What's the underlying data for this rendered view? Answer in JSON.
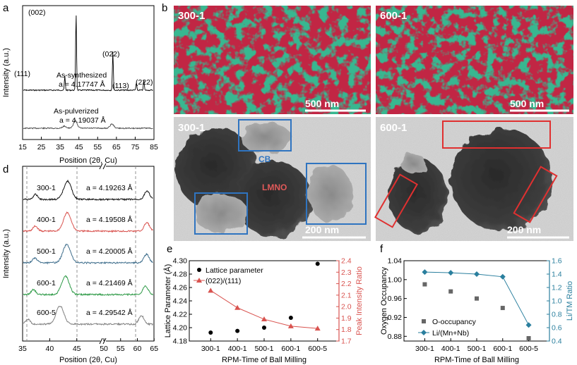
{
  "panels": {
    "a": {
      "label": "a",
      "ylabel": "Intensity (a.u.)",
      "xlabel": "Position (2θ, Cu)",
      "xticks": [
        15,
        25,
        35,
        45,
        55,
        65,
        75,
        85
      ],
      "peaks": [
        "(002)",
        "(111)",
        "(022)",
        "(113)",
        "(222)"
      ],
      "synth_label": "As-synthesized",
      "synth_param": "a = 4.17747 Å",
      "pulv_label": "As-pulverized",
      "pulv_param": "a = 4.19037 Å"
    },
    "b": {
      "label": "b",
      "top_tag": "300-1",
      "top_scale": "500 nm",
      "bot_tag": "300-1",
      "bot_scale": "200 nm",
      "cb": "CB",
      "lmno": "LMNO"
    },
    "c": {
      "label": "c",
      "top_tag": "600-1",
      "top_scale": "500 nm",
      "bot_tag": "600-1",
      "bot_scale": "200 nm"
    },
    "d": {
      "label": "d",
      "ylabel": "Intensity (a.u.)",
      "xlabel": "Position (2θ, Cu)",
      "xticks": [
        35,
        40,
        45,
        50,
        55,
        60,
        65
      ],
      "traces": [
        {
          "name": "300-1",
          "param": "a = 4.19263 Å",
          "color": "#111111"
        },
        {
          "name": "400-1",
          "param": "a = 4.19508 Å",
          "color": "#d9534f"
        },
        {
          "name": "500-1",
          "param": "a = 4.20005 Å",
          "color": "#3f6e8c"
        },
        {
          "name": "600-1",
          "param": "a = 4.21469 Å",
          "color": "#2e9a47"
        },
        {
          "name": "600-5",
          "param": "a = 4.29542 Å",
          "color": "#808080"
        }
      ]
    }
  },
  "chart_data": [
    {
      "type": "scatter",
      "panel": "e",
      "categories": [
        "300-1",
        "400-1",
        "500-1",
        "600-1",
        "600-5"
      ],
      "xlabel": "RPM-Time of Ball Milling",
      "ylabel": "Lattice Parameter (Å)",
      "y2label": "Peak Intensity Ratio",
      "ylim": [
        4.18,
        4.3
      ],
      "yticks": [
        4.18,
        4.2,
        4.22,
        4.24,
        4.26,
        4.28,
        4.3
      ],
      "y2lim": [
        1.7,
        2.4
      ],
      "y2ticks": [
        1.7,
        1.8,
        1.9,
        2.0,
        2.1,
        2.2,
        2.3,
        2.4
      ],
      "series": [
        {
          "name": "Lattice parameter",
          "axis": "left",
          "marker": "circle",
          "color": "#000000",
          "values": [
            4.19263,
            4.19508,
            4.20005,
            4.21469,
            4.29542
          ]
        },
        {
          "name": "(022)/(111)",
          "axis": "right",
          "marker": "triangle",
          "color": "#d9534f",
          "values": [
            2.14,
            1.99,
            1.89,
            1.83,
            1.81
          ]
        }
      ]
    },
    {
      "type": "scatter",
      "panel": "f",
      "categories": [
        "300-1",
        "400-1",
        "500-1",
        "600-1",
        "600-5"
      ],
      "xlabel": "RPM-Time of Ball Milling",
      "ylabel": "Oxygen Occupancy",
      "y2label": "Li/TM Ratio",
      "ylim": [
        0.87,
        1.04
      ],
      "yticks": [
        0.88,
        0.92,
        0.96,
        1.0,
        1.04
      ],
      "y2lim": [
        0.4,
        1.6
      ],
      "y2ticks": [
        0.4,
        0.6,
        0.8,
        1.0,
        1.2,
        1.4,
        1.6
      ],
      "series": [
        {
          "name": "O-occupancy",
          "axis": "left",
          "marker": "square",
          "color": "#666666",
          "values": [
            0.99,
            0.975,
            0.96,
            0.94,
            0.876
          ]
        },
        {
          "name": "Li/(Mn+Nb)",
          "axis": "right",
          "marker": "diamond",
          "color": "#2a7f9e",
          "values": [
            1.43,
            1.42,
            1.4,
            1.36,
            0.64
          ]
        }
      ]
    }
  ]
}
